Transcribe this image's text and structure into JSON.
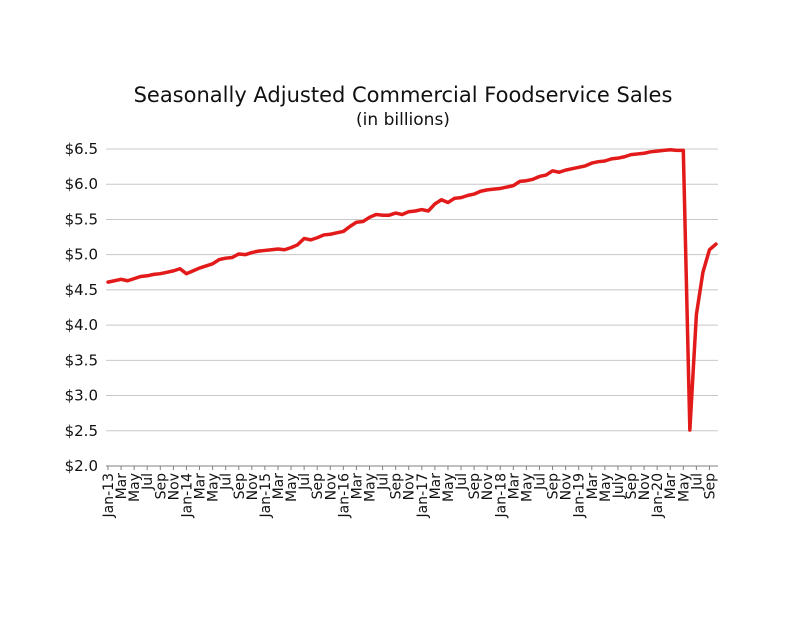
{
  "chart_data": {
    "type": "line",
    "title": "Seasonally Adjusted Commercial Foodservice Sales",
    "subtitle": "(in billions)",
    "xlabel": "",
    "ylabel": "",
    "ylim": [
      2.0,
      6.5
    ],
    "y_ticks": [
      "$6.5",
      "$6.0",
      "$5.5",
      "$5.0",
      "$4.5",
      "$4.0",
      "$3.5",
      "$3.0",
      "$2.5",
      "$2.0"
    ],
    "y_tick_values": [
      6.5,
      6.0,
      5.5,
      5.0,
      4.5,
      4.0,
      3.5,
      3.0,
      2.5,
      2.0
    ],
    "grid": "horizontal",
    "legend": "none",
    "x_tick_labels": [
      "Jan-13",
      "Mar",
      "May",
      "Jul",
      "Sep",
      "Nov",
      "Jan-14",
      "Mar",
      "May",
      "Jul",
      "Sep",
      "Nov",
      "Jan-15",
      "Mar",
      "May",
      "Jul",
      "Sep",
      "Nov",
      "Jan-16",
      "Mar",
      "May",
      "Jul",
      "Sep",
      "Nov",
      "Jan-17",
      "Mar",
      "May",
      "Jul",
      "Sep",
      "Nov",
      "Jan-18",
      "Mar",
      "May",
      "Jul",
      "Sep",
      "Nov",
      "Jan-19",
      "Mar",
      "May",
      "July",
      "Sep",
      "Nov",
      "Jan-20",
      "Mar",
      "May",
      "Jul",
      "Sep"
    ],
    "x_start": "Jan-13",
    "x_end": "Sep-20",
    "series": [
      {
        "color": "#e31a1a",
        "values": [
          4.61,
          4.63,
          4.65,
          4.63,
          4.66,
          4.69,
          4.7,
          4.72,
          4.73,
          4.75,
          4.77,
          4.8,
          4.73,
          4.77,
          4.81,
          4.84,
          4.87,
          4.93,
          4.95,
          4.96,
          5.01,
          5.0,
          5.03,
          5.05,
          5.06,
          5.07,
          5.08,
          5.07,
          5.1,
          5.14,
          5.23,
          5.21,
          5.24,
          5.28,
          5.29,
          5.31,
          5.33,
          5.4,
          5.46,
          5.47,
          5.53,
          5.57,
          5.56,
          5.56,
          5.59,
          5.57,
          5.61,
          5.62,
          5.64,
          5.62,
          5.72,
          5.78,
          5.74,
          5.8,
          5.81,
          5.84,
          5.86,
          5.9,
          5.92,
          5.93,
          5.94,
          5.96,
          5.98,
          6.04,
          6.05,
          6.07,
          6.11,
          6.13,
          6.19,
          6.17,
          6.2,
          6.22,
          6.24,
          6.26,
          6.3,
          6.32,
          6.33,
          6.36,
          6.37,
          6.39,
          6.42,
          6.43,
          6.44,
          6.46,
          6.47,
          6.48,
          6.49,
          6.48,
          6.48,
          2.51,
          4.15,
          4.75,
          5.07,
          5.15
        ]
      }
    ]
  }
}
